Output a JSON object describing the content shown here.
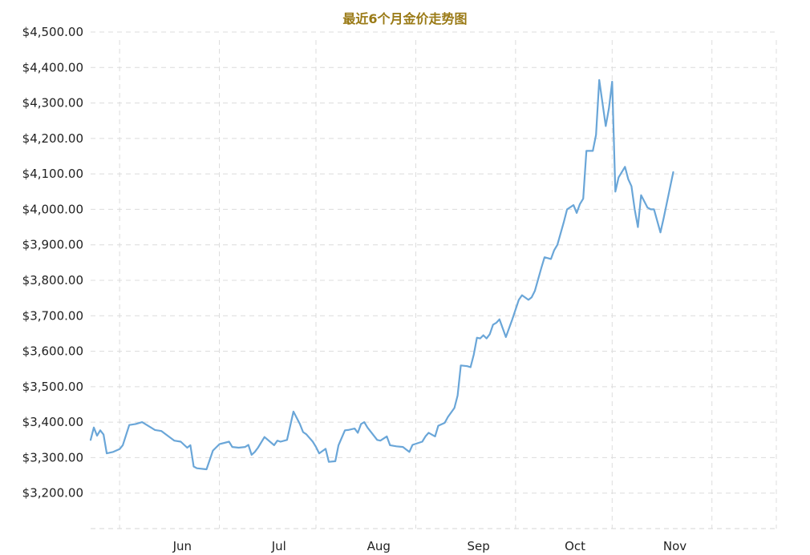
{
  "chart_data": {
    "type": "line",
    "title": "最近6个月金价走势图",
    "xlabel": "",
    "ylabel": "",
    "ylim": [
      3100,
      4500
    ],
    "y_ticks": [
      {
        "value": 3200,
        "label": "$3,200.00"
      },
      {
        "value": 3300,
        "label": "$3,300.00"
      },
      {
        "value": 3400,
        "label": "$3,400.00"
      },
      {
        "value": 3500,
        "label": "$3,500.00"
      },
      {
        "value": 3600,
        "label": "$3,600.00"
      },
      {
        "value": 3700,
        "label": "$3,700.00"
      },
      {
        "value": 3800,
        "label": "$3,800.00"
      },
      {
        "value": 3900,
        "label": "$3,900.00"
      },
      {
        "value": 4000,
        "label": "$4,000.00"
      },
      {
        "value": 4100,
        "label": "$4,100.00"
      },
      {
        "value": 4200,
        "label": "$4,200.00"
      },
      {
        "value": 4300,
        "label": "$4,300.00"
      },
      {
        "value": 4400,
        "label": "$4,400.00"
      },
      {
        "value": 4500,
        "label": "$4,500.00"
      }
    ],
    "x_range": [
      "2025-05-07",
      "2025-12-06"
    ],
    "x_ticks": [
      {
        "date": "2025-06-01",
        "label": "Jun"
      },
      {
        "date": "2025-07-01",
        "label": "Jul"
      },
      {
        "date": "2025-08-01",
        "label": "Aug"
      },
      {
        "date": "2025-09-01",
        "label": "Sep"
      },
      {
        "date": "2025-10-01",
        "label": "Oct"
      },
      {
        "date": "2025-11-01",
        "label": "Nov"
      }
    ],
    "gridlines": [
      "2025-05-16",
      "2025-06-16",
      "2025-07-16",
      "2025-08-16",
      "2025-09-16",
      "2025-10-16",
      "2025-11-16",
      "2025-12-06"
    ],
    "grid": true,
    "line_color": "#6aa6d8",
    "title_color": "#9a7a16",
    "series": [
      {
        "x": [
          "2025-05-07",
          "2025-05-08",
          "2025-05-09",
          "2025-05-10",
          "2025-05-11",
          "2025-05-12",
          "2025-05-14",
          "2025-05-16",
          "2025-05-17",
          "2025-05-19",
          "2025-05-21",
          "2025-05-23",
          "2025-05-27",
          "2025-05-29",
          "2025-05-30",
          "2025-06-02",
          "2025-06-04",
          "2025-06-06",
          "2025-06-07",
          "2025-06-08",
          "2025-06-09",
          "2025-06-12",
          "2025-06-14",
          "2025-06-16",
          "2025-06-19",
          "2025-06-20",
          "2025-06-22",
          "2025-06-24",
          "2025-06-25",
          "2025-06-26",
          "2025-06-27",
          "2025-06-28",
          "2025-06-30",
          "2025-07-03",
          "2025-07-04",
          "2025-07-05",
          "2025-07-07",
          "2025-07-08",
          "2025-07-09",
          "2025-07-11",
          "2025-07-12",
          "2025-07-13",
          "2025-07-15",
          "2025-07-16",
          "2025-07-17",
          "2025-07-19",
          "2025-07-20",
          "2025-07-22",
          "2025-07-23",
          "2025-07-25",
          "2025-07-26",
          "2025-07-28",
          "2025-07-29",
          "2025-07-30",
          "2025-07-31",
          "2025-08-01",
          "2025-08-04",
          "2025-08-05",
          "2025-08-07",
          "2025-08-08",
          "2025-08-10",
          "2025-08-12",
          "2025-08-14",
          "2025-08-15",
          "2025-08-18",
          "2025-08-19",
          "2025-08-20",
          "2025-08-22",
          "2025-08-23",
          "2025-08-25",
          "2025-08-26",
          "2025-08-28",
          "2025-08-29",
          "2025-08-30",
          "2025-09-01",
          "2025-09-02",
          "2025-09-03",
          "2025-09-04",
          "2025-09-05",
          "2025-09-06",
          "2025-09-07",
          "2025-09-08",
          "2025-09-09",
          "2025-09-10",
          "2025-09-11",
          "2025-09-13",
          "2025-09-14",
          "2025-09-15",
          "2025-09-17",
          "2025-09-18",
          "2025-09-20",
          "2025-09-21",
          "2025-09-22",
          "2025-09-24",
          "2025-09-25",
          "2025-09-27",
          "2025-09-28",
          "2025-09-29",
          "2025-10-01",
          "2025-10-02",
          "2025-10-04",
          "2025-10-05",
          "2025-10-06",
          "2025-10-07",
          "2025-10-08",
          "2025-10-10",
          "2025-10-11",
          "2025-10-12",
          "2025-10-14",
          "2025-10-15",
          "2025-10-16",
          "2025-10-17",
          "2025-10-18",
          "2025-10-20",
          "2025-10-21",
          "2025-10-22",
          "2025-10-23",
          "2025-10-24",
          "2025-10-25",
          "2025-10-27",
          "2025-10-28",
          "2025-10-29",
          "2025-10-31",
          "2025-11-01",
          "2025-11-04"
        ],
        "values": [
          3350,
          3385,
          3362,
          3377,
          3365,
          3312,
          3316,
          3324,
          3335,
          3392,
          3395,
          3400,
          3378,
          3375,
          3368,
          3348,
          3345,
          3328,
          3335,
          3275,
          3270,
          3267,
          3320,
          3338,
          3345,
          3330,
          3328,
          3330,
          3336,
          3308,
          3316,
          3328,
          3358,
          3335,
          3348,
          3345,
          3350,
          3390,
          3430,
          3395,
          3372,
          3366,
          3345,
          3330,
          3312,
          3325,
          3288,
          3290,
          3335,
          3377,
          3378,
          3382,
          3370,
          3395,
          3400,
          3385,
          3350,
          3348,
          3360,
          3335,
          3332,
          3330,
          3316,
          3336,
          3345,
          3360,
          3370,
          3360,
          3390,
          3398,
          3415,
          3440,
          3475,
          3560,
          3558,
          3555,
          3590,
          3638,
          3636,
          3645,
          3636,
          3648,
          3675,
          3680,
          3690,
          3640,
          3665,
          3690,
          3745,
          3758,
          3745,
          3752,
          3770,
          3835,
          3865,
          3860,
          3885,
          3900,
          3965,
          4000,
          4012,
          3990,
          4015,
          4030,
          4165,
          4165,
          4210,
          4365,
          4235,
          4285,
          4360,
          4050,
          4090,
          4120,
          4085,
          4065,
          4000,
          3950,
          4040,
          4005,
          4000,
          4000,
          3935,
          3975,
          4105
        ]
      }
    ]
  }
}
